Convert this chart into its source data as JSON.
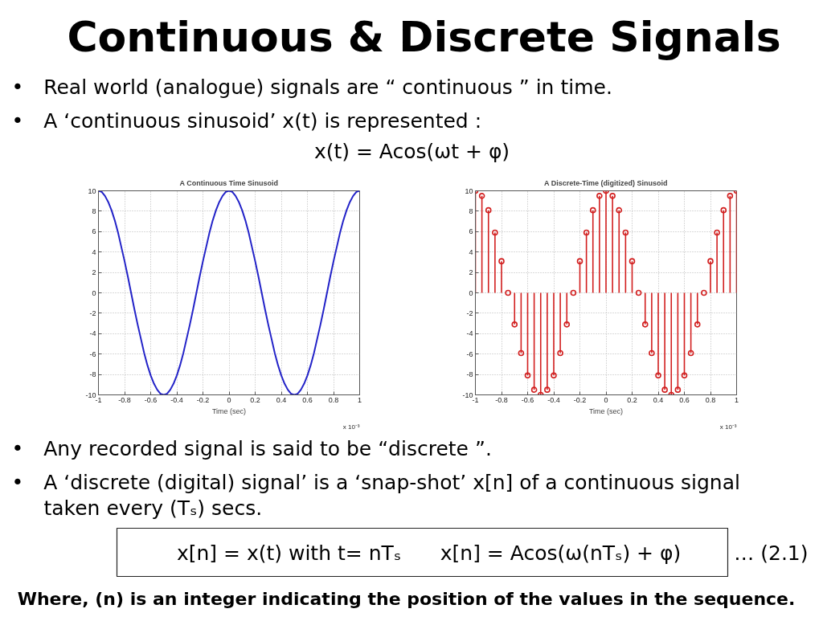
{
  "chart_data": [
    {
      "type": "other",
      "title": "Continuous & Discrete Signals",
      "annotations": [
        "• Real world (analogue) signals are “ continuous ” in time.",
        "• A ‘continuous sinusoid’  x(t) is represented :",
        "x(t) = Acos(ωt + φ)"
      ]
    },
    {
      "type": "line",
      "title": "A Continuous Time Sinusoid",
      "xlabel": "Time (sec)",
      "annotations": [
        "x 10⁻³"
      ],
      "x": [
        -1,
        -0.975,
        -0.95,
        -0.925,
        -0.9,
        -0.875,
        -0.85,
        -0.825,
        -0.8,
        -0.775,
        -0.75,
        -0.725,
        -0.7,
        -0.675,
        -0.65,
        -0.625,
        -0.6,
        -0.575,
        -0.55,
        -0.525,
        -0.5,
        -0.475,
        -0.45,
        -0.425,
        -0.4,
        -0.375,
        -0.35,
        -0.325,
        -0.3,
        -0.275,
        -0.25,
        -0.225,
        -0.2,
        -0.175,
        -0.15,
        -0.125,
        -0.1,
        -0.075,
        -0.05,
        -0.025,
        0,
        0.025,
        0.05,
        0.075,
        0.1,
        0.125,
        0.15,
        0.175,
        0.2,
        0.225,
        0.25,
        0.275,
        0.3,
        0.325,
        0.35,
        0.375,
        0.4,
        0.425,
        0.45,
        0.475,
        0.5,
        0.525,
        0.55,
        0.575,
        0.6,
        0.625,
        0.65,
        0.675,
        0.7,
        0.725,
        0.75,
        0.775,
        0.8,
        0.825,
        0.85,
        0.875,
        0.9,
        0.925,
        0.95,
        0.975,
        1
      ],
      "series": [
        {
          "color": "#2323c8",
          "values": [
            10,
            9.9,
            9.5,
            8.9,
            8.1,
            7.1,
            5.9,
            4.5,
            3.1,
            1.6,
            0,
            -1.6,
            -3.1,
            -4.5,
            -5.9,
            -7.1,
            -8.1,
            -8.9,
            -9.5,
            -9.9,
            -10,
            -9.9,
            -9.5,
            -8.9,
            -8.1,
            -7.1,
            -5.9,
            -4.5,
            -3.1,
            -1.6,
            0,
            1.6,
            3.1,
            4.5,
            5.9,
            7.1,
            8.1,
            8.9,
            9.5,
            9.9,
            10,
            9.9,
            9.5,
            8.9,
            8.1,
            7.1,
            5.9,
            4.5,
            3.1,
            1.6,
            0,
            -1.6,
            -3.1,
            -4.5,
            -5.9,
            -7.1,
            -8.1,
            -8.9,
            -9.5,
            -9.9,
            -10,
            -9.9,
            -9.5,
            -8.9,
            -8.1,
            -7.1,
            -5.9,
            -4.5,
            -3.1,
            -1.6,
            0,
            1.6,
            3.1,
            4.5,
            5.9,
            7.1,
            8.1,
            8.9,
            9.5,
            9.9,
            10
          ]
        }
      ],
      "xlim": [
        -1,
        1
      ],
      "ylim": [
        -10,
        10
      ],
      "xticks": [
        -1,
        -0.8,
        -0.6,
        -0.4,
        -0.2,
        0,
        0.2,
        0.4,
        0.6,
        0.8,
        1
      ],
      "yticks": [
        -10,
        -8,
        -6,
        -4,
        -2,
        0,
        2,
        4,
        6,
        8,
        10
      ],
      "grid": true
    },
    {
      "type": "lollipop",
      "title": "A Discrete-Time (digitized) Sinusoid",
      "xlabel": "Time (sec)",
      "annotations": [
        "x 10⁻³"
      ],
      "x": [
        -1,
        -0.95,
        -0.9,
        -0.85,
        -0.8,
        -0.75,
        -0.7,
        -0.65,
        -0.6,
        -0.55,
        -0.5,
        -0.45,
        -0.4,
        -0.35,
        -0.3,
        -0.25,
        -0.2,
        -0.15,
        -0.1,
        -0.05,
        0,
        0.05,
        0.1,
        0.15,
        0.2,
        0.25,
        0.3,
        0.35,
        0.4,
        0.45,
        0.5,
        0.55,
        0.6,
        0.65,
        0.7,
        0.75,
        0.8,
        0.85,
        0.9,
        0.95,
        1
      ],
      "series": [
        {
          "color": "#d21f1f",
          "values": [
            10,
            9.5,
            8.1,
            5.9,
            3.1,
            0,
            -3.1,
            -5.9,
            -8.1,
            -9.5,
            -10,
            -9.5,
            -8.1,
            -5.9,
            -3.1,
            0,
            3.1,
            5.9,
            8.1,
            9.5,
            10,
            9.5,
            8.1,
            5.9,
            3.1,
            0,
            -3.1,
            -5.9,
            -8.1,
            -9.5,
            -10,
            -9.5,
            -8.1,
            -5.9,
            -3.1,
            0,
            3.1,
            5.9,
            8.1,
            9.5,
            10
          ]
        }
      ],
      "xlim": [
        -1,
        1
      ],
      "ylim": [
        -10,
        10
      ],
      "xticks": [
        -1,
        -0.8,
        -0.6,
        -0.4,
        -0.2,
        0,
        0.2,
        0.4,
        0.6,
        0.8,
        1
      ],
      "yticks": [
        -10,
        -8,
        -6,
        -4,
        -2,
        0,
        2,
        4,
        6,
        8,
        10
      ],
      "grid": true,
      "marker": "circle"
    },
    {
      "type": "other",
      "annotations": [
        "• Any recorded signal is said to be “discrete ”.",
        "• A ‘discrete (digital) signal’ is a ‘snap-shot’ x[n] of a continuous signal",
        "taken every (Tₛ) secs.",
        "x[n] = x(t) with t= nTₛ",
        "x[n] = Acos(ω(nTₛ) + φ)",
        "… (2.1)",
        "Where, (n) is an integer indicating the position of the values in the sequence."
      ]
    }
  ]
}
